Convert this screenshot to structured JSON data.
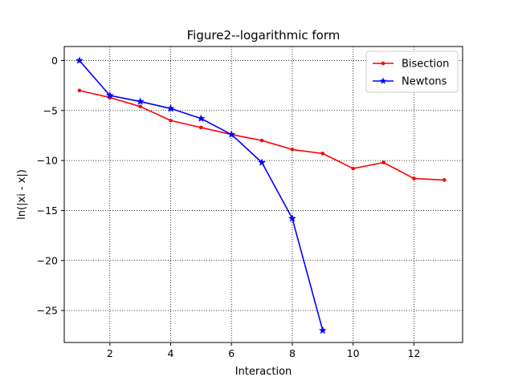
{
  "chart_data": {
    "type": "line",
    "title": "Figure2--logarithmic form",
    "xlabel": "Interaction",
    "ylabel": "ln(|xi - x|)",
    "xlim": [
      0.5,
      13.6
    ],
    "ylim": [
      -28.2,
      1.4
    ],
    "xticks": [
      2,
      4,
      6,
      8,
      10,
      12
    ],
    "yticks": [
      0,
      -5,
      -10,
      -15,
      -20,
      -25
    ],
    "grid": true,
    "grid_style": "dotted",
    "legend_position": "upper right",
    "series": [
      {
        "name": "Bisection",
        "color": "#ff0000",
        "marker": "dot",
        "x": [
          1,
          2,
          3,
          4,
          5,
          6,
          7,
          8,
          9,
          10,
          11,
          12,
          13
        ],
        "y": [
          -3.0,
          -3.7,
          -4.6,
          -6.0,
          -6.7,
          -7.4,
          -8.0,
          -8.9,
          -9.3,
          -10.8,
          -10.2,
          -11.8,
          -11.95
        ]
      },
      {
        "name": "Newtons",
        "color": "#0000ff",
        "marker": "star",
        "x": [
          1,
          2,
          3,
          4,
          5,
          6,
          7,
          8,
          9
        ],
        "y": [
          0.0,
          -3.5,
          -4.1,
          -4.8,
          -5.8,
          -7.4,
          -10.2,
          -15.8,
          -27.0
        ]
      }
    ]
  }
}
